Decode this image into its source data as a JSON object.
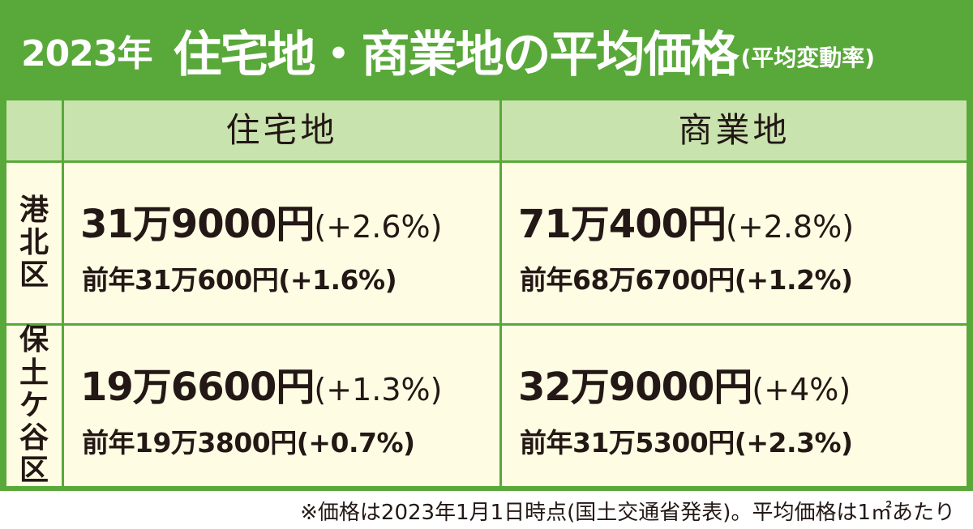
{
  "title": {
    "year": "2023年",
    "main": "住宅地・商業地の平均価格",
    "sub": "(平均変動率)"
  },
  "columns": {
    "residential": "住宅地",
    "commercial": "商業地"
  },
  "rows": [
    {
      "district_chars": [
        "港",
        "北",
        "区"
      ],
      "residential": {
        "price": "31万9000円",
        "change": "(+2.6%)",
        "previous": "前年31万600円(+1.6%)"
      },
      "commercial": {
        "price": "71万400円",
        "change": "(+2.8%)",
        "previous": "前年68万6700円(+1.2%)"
      }
    },
    {
      "district_chars": [
        "保",
        "土",
        "ケ",
        "谷",
        "区"
      ],
      "residential": {
        "price": "19万6600円",
        "change": "(+1.3%)",
        "previous": "前年19万3800円(+0.7%)"
      },
      "commercial": {
        "price": "32万9000円",
        "change": "(+4%)",
        "previous": "前年31万5300円(+2.3%)"
      }
    }
  ],
  "footnote": "※価格は2023年1月1日時点(国土交通省発表)。平均価格は1㎡あたり",
  "colors": {
    "frame_green": "#59a83a",
    "header_green": "#c8e3ad",
    "cell_cream": "#fefce3",
    "text": "#231815"
  }
}
